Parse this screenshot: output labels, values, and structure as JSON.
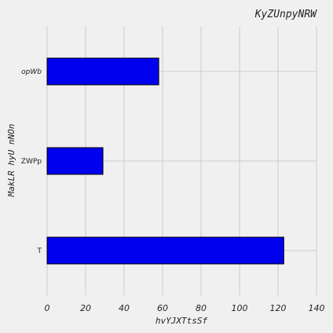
{
  "chart_data": {
    "type": "bar",
    "orientation": "horizontal",
    "title": "KyZUnpyNRW",
    "xlabel": "hvYJXTtsSf",
    "ylabel": "MakLR hyU nNOn",
    "categories": [
      "opWb",
      "ZWPp",
      "T"
    ],
    "values": [
      58,
      29,
      123
    ],
    "xlim": [
      0,
      140
    ],
    "xticks": [
      0,
      20,
      40,
      60,
      80,
      100,
      120,
      140
    ],
    "grid": true,
    "bar_color": "#0000ee",
    "bar_edge_color": "#000000",
    "background": "#f0f0f0",
    "grid_color": "#cbcbcb"
  }
}
